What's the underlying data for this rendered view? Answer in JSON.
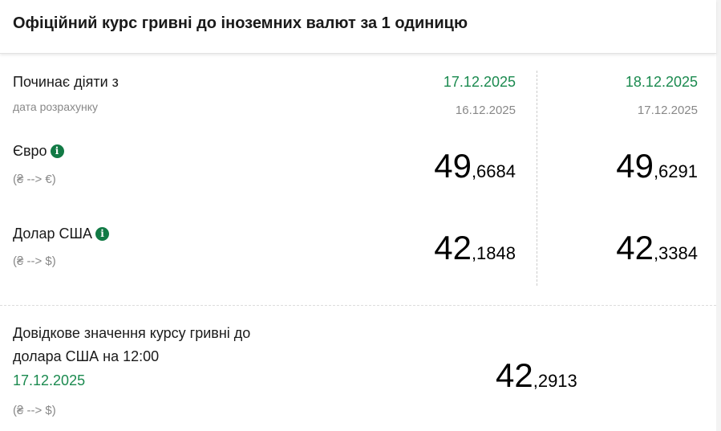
{
  "title": "Офіційний курс гривні до іноземних валют за 1 одиницю",
  "labels": {
    "effective": "Починає діяти з",
    "calc_date": "дата розрахунку"
  },
  "columns": [
    {
      "effective": "17.12.2025",
      "calc": "16.12.2025",
      "eur_int": "49",
      "eur_frac": ",6684",
      "usd_int": "42",
      "usd_frac": ",1848"
    },
    {
      "effective": "18.12.2025",
      "calc": "17.12.2025",
      "eur_int": "49",
      "eur_frac": ",6291",
      "usd_int": "42",
      "usd_frac": ",3384"
    }
  ],
  "currencies": [
    {
      "name": "Євро",
      "direction": "(₴ --> €)",
      "icon": "info-icon"
    },
    {
      "name": "Долар США",
      "direction": "(₴ --> $)",
      "icon": "info-icon"
    }
  ],
  "reference": {
    "line1": "Довідкове значення курсу гривні до",
    "line2": "долара США на 12:00",
    "date": "17.12.2025",
    "direction": "(₴ --> $)",
    "int": "42",
    "frac": ",2913"
  },
  "colors": {
    "accent": "#1b8a4f",
    "info": "#127a45"
  }
}
